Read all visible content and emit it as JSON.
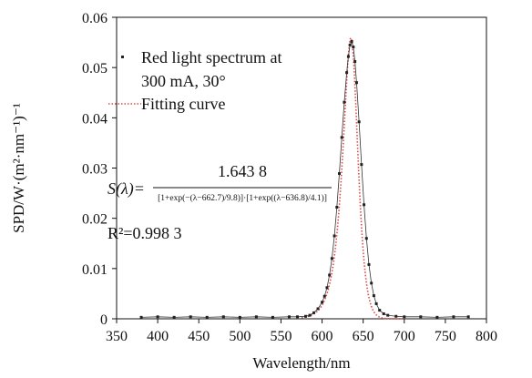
{
  "chart_data": {
    "type": "scatter",
    "xlabel": "Wavelength/nm",
    "ylabel": "SPD/W·(m²·nm⁻¹)⁻¹",
    "xlim": [
      350,
      800
    ],
    "ylim": [
      0,
      0.06
    ],
    "x_ticks": [
      350,
      400,
      450,
      500,
      550,
      600,
      650,
      700,
      750,
      800
    ],
    "y_ticks": [
      0,
      0.01,
      0.02,
      0.03,
      0.04,
      0.05,
      0.06
    ],
    "x_tick_labels": [
      "350",
      "400",
      "450",
      "500",
      "550",
      "600",
      "650",
      "700",
      "750",
      "800"
    ],
    "y_tick_labels": [
      "0",
      "0.01",
      "0.02",
      "0.03",
      "0.04",
      "0.05",
      "0.06"
    ],
    "grid": false,
    "legend_position": "top-left",
    "series": [
      {
        "name": "Red light spectrum at 300 mA, 30°",
        "marker": "square",
        "color": "#222222",
        "x": [
          380,
          400,
          420,
          440,
          460,
          480,
          500,
          520,
          540,
          560,
          570,
          580,
          585,
          590,
          595,
          600,
          603,
          606,
          609,
          612,
          615,
          618,
          621,
          624,
          627,
          630,
          632,
          634,
          636,
          638,
          640,
          642,
          645,
          648,
          651,
          654,
          657,
          660,
          663,
          666,
          670,
          675,
          680,
          690,
          700,
          720,
          740,
          760,
          778
        ],
        "y": [
          0.0003,
          0.0004,
          0.0003,
          0.0004,
          0.0003,
          0.0004,
          0.0003,
          0.0004,
          0.0003,
          0.0004,
          0.0004,
          0.0005,
          0.0007,
          0.0012,
          0.002,
          0.0033,
          0.0045,
          0.0062,
          0.0087,
          0.012,
          0.0165,
          0.0222,
          0.0289,
          0.0361,
          0.0431,
          0.049,
          0.0522,
          0.0545,
          0.0552,
          0.0541,
          0.0512,
          0.047,
          0.0392,
          0.0307,
          0.0227,
          0.016,
          0.0108,
          0.0071,
          0.0046,
          0.003,
          0.0017,
          0.001,
          0.0007,
          0.0005,
          0.0004,
          0.0004,
          0.0003,
          0.0004,
          0.0004
        ]
      },
      {
        "name": "Fitting curve",
        "style": "dotted",
        "color": "#e04848"
      }
    ],
    "legend": [
      {
        "line1": "Red light spectrum at",
        "line2": "300 mA, 30°"
      },
      {
        "line1": "Fitting curve"
      }
    ],
    "annotations": {
      "lhs": "S(λ)=",
      "numerator": "1.643 8",
      "denominator": "[1+exp(−(λ−662.7)/9.8)]·[1+exp((λ−636.8)/4.1)]",
      "r2_label": "R²=0.998 3",
      "fit_params": {
        "A": 1.6438,
        "a": 662.7,
        "b": 9.8,
        "c": 636.8,
        "d": 4.1
      }
    }
  }
}
